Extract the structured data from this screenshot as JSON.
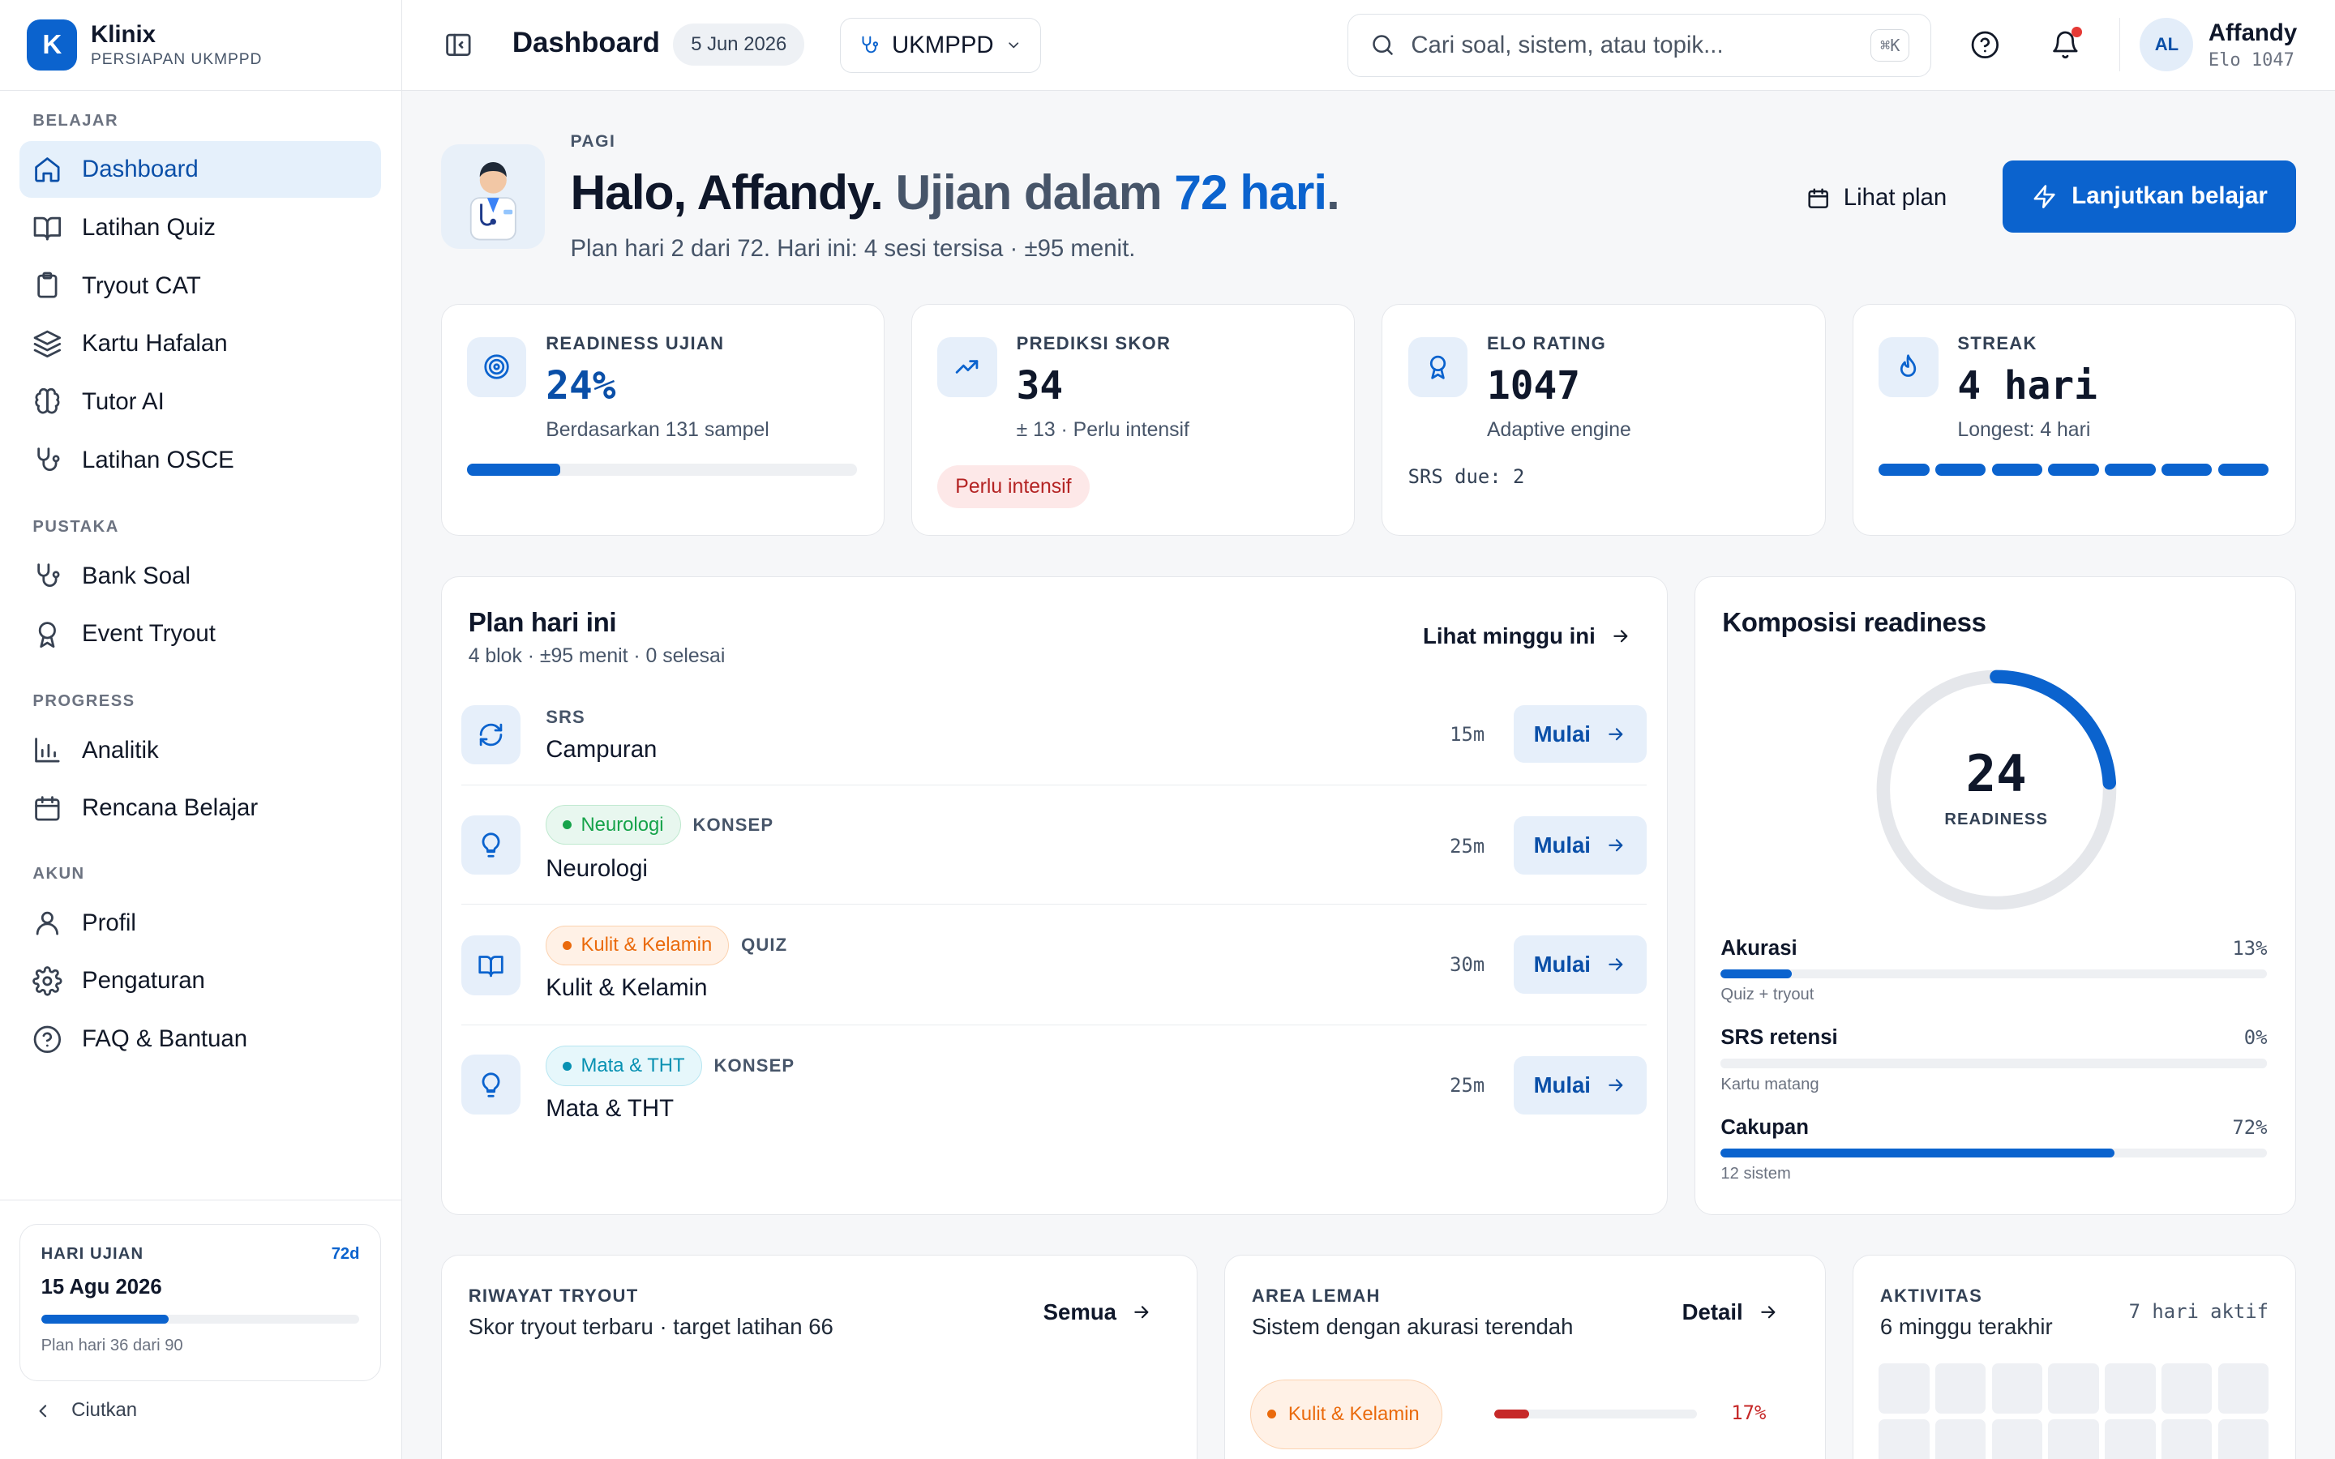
{
  "brand": {
    "logo": "K",
    "name": "Klinix",
    "subtitle": "PERSIAPAN UKMPPD"
  },
  "sidebar": {
    "groups": [
      {
        "label": "BELAJAR",
        "items": [
          {
            "label": "Dashboard",
            "icon": "home-icon",
            "active": true
          },
          {
            "label": "Latihan Quiz",
            "icon": "book-icon"
          },
          {
            "label": "Tryout CAT",
            "icon": "clipboard-icon"
          },
          {
            "label": "Kartu Hafalan",
            "icon": "layers-icon"
          },
          {
            "label": "Tutor AI",
            "icon": "brain-icon"
          },
          {
            "label": "Latihan OSCE",
            "icon": "stethoscope-icon"
          }
        ]
      },
      {
        "label": "PUSTAKA",
        "items": [
          {
            "label": "Bank Soal",
            "icon": "stethoscope-icon"
          },
          {
            "label": "Event Tryout",
            "icon": "award-icon"
          }
        ]
      },
      {
        "label": "PROGRESS",
        "items": [
          {
            "label": "Analitik",
            "icon": "bar-chart-icon"
          },
          {
            "label": "Rencana Belajar",
            "icon": "calendar-icon"
          }
        ]
      },
      {
        "label": "AKUN",
        "items": [
          {
            "label": "Profil",
            "icon": "user-icon"
          },
          {
            "label": "Pengaturan",
            "icon": "gear-icon"
          },
          {
            "label": "FAQ & Bantuan",
            "icon": "help-icon"
          }
        ]
      }
    ],
    "exam": {
      "label": "HARI UJIAN",
      "days_left": "72d",
      "date": "15 Agu 2026",
      "progress": 0.4,
      "note": "Plan hari 36 dari 90"
    },
    "collapse_label": "Ciutkan"
  },
  "topbar": {
    "title": "Dashboard",
    "date": "5 Jun 2026",
    "exam_select": "UKMPPD",
    "search_placeholder": "Cari soal, sistem, atau topik...",
    "search_shortcut": "⌘K",
    "user": {
      "initials": "AL",
      "name": "Affandy",
      "elo": "Elo 1047"
    },
    "notification_dot_color": "#e53935"
  },
  "hero": {
    "kicker": "PAGI",
    "greeting": "Halo, Affandy.",
    "exam_prefix": " Ujian dalam ",
    "exam_days": "72 hari",
    "exam_suffix": ".",
    "subtitle": "Plan hari 2 dari 72. Hari ini: 4 sesi tersisa · ±95 menit.",
    "plan_button": "Lihat plan",
    "primary_button": "Lanjutkan belajar"
  },
  "stats": {
    "readiness": {
      "label": "READINESS UJIAN",
      "value": "24%",
      "note": "Berdasarkan 131 sampel",
      "progress": 0.24
    },
    "prediction": {
      "label": "PREDIKSI SKOR",
      "value": "34",
      "note": "± 13 · Perlu intensif",
      "badge": "Perlu intensif"
    },
    "elo": {
      "label": "ELO RATING",
      "value": "1047",
      "note": "Adaptive engine",
      "srs": "SRS due: 2"
    },
    "streak": {
      "label": "STREAK",
      "value": "4 hari",
      "note": "Longest: 4 hari",
      "days": 7
    }
  },
  "plan": {
    "title": "Plan hari ini",
    "subtitle": "4 blok · ±95 menit · 0 selesai",
    "week_link": "Lihat minggu ini",
    "start_label": "Mulai",
    "rows": [
      {
        "kind": "SRS",
        "tag": "",
        "title": "Campuran",
        "duration": "15m",
        "icon": "refresh-icon"
      },
      {
        "kind": "KONSEP",
        "tag": "Neurologi",
        "tag_color": "green",
        "title": "Neurologi",
        "duration": "25m",
        "icon": "lightbulb-icon"
      },
      {
        "kind": "QUIZ",
        "tag": "Kulit & Kelamin",
        "tag_color": "orange",
        "title": "Kulit & Kelamin",
        "duration": "30m",
        "icon": "book-open-icon"
      },
      {
        "kind": "KONSEP",
        "tag": "Mata & THT",
        "tag_color": "cyan",
        "title": "Mata & THT",
        "duration": "25m",
        "icon": "lightbulb-icon"
      }
    ]
  },
  "composition": {
    "title": "Komposisi readiness",
    "score": "24",
    "score_label": "READINESS",
    "ring_progress": 0.24,
    "metrics": [
      {
        "name": "Akurasi",
        "pct": "13%",
        "value": 0.13,
        "sub": "Quiz + tryout"
      },
      {
        "name": "SRS retensi",
        "pct": "0%",
        "value": 0,
        "sub": "Kartu matang"
      },
      {
        "name": "Cakupan",
        "pct": "72%",
        "value": 0.72,
        "sub": "12 sistem"
      }
    ]
  },
  "tryout_history": {
    "kicker": "RIWAYAT TRYOUT",
    "subtitle": "Skor tryout terbaru · target latihan 66",
    "link": "Semua"
  },
  "weak_area": {
    "kicker": "AREA LEMAH",
    "subtitle": "Sistem dengan akurasi terendah",
    "link": "Detail",
    "items": [
      {
        "name": "Kulit & Kelamin",
        "pct": "17%",
        "value": 0.17
      }
    ]
  },
  "activity": {
    "kicker": "AKTIVITAS",
    "subtitle": "6 minggu terakhir",
    "active_days": "7 hari aktif"
  }
}
